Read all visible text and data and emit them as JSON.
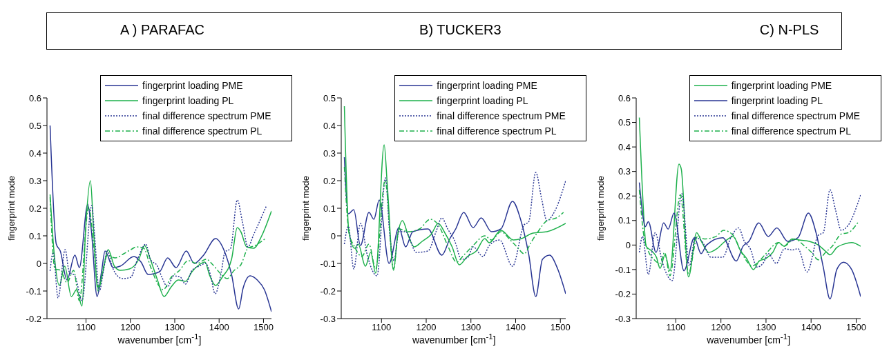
{
  "chart_data": [
    {
      "type": "line",
      "title": "A ) PARAFAC",
      "xlabel": "wavenumber [cm$^{-1}$]",
      "ylabel": "fingerprint mode",
      "xlim": [
        1012,
        1518
      ],
      "ylim": [
        -0.2,
        0.6
      ],
      "xticks": [
        1100,
        1200,
        1300,
        1400,
        1500
      ],
      "yticks": [
        -0.2,
        -0.1,
        0,
        0.1,
        0.2,
        0.3,
        0.4,
        0.5,
        0.6
      ],
      "legend": "top right",
      "series": [
        {
          "name": "fingerprint loading PME",
          "color": "#283593",
          "line_style": "solid",
          "x": [
            1019,
            1033,
            1042,
            1057,
            1075,
            1085,
            1104,
            1112,
            1125,
            1135,
            1143,
            1161,
            1177,
            1208,
            1224,
            1240,
            1266,
            1284,
            1303,
            1326,
            1344,
            1365,
            1392,
            1413,
            1428,
            1444,
            1454,
            1470,
            1486,
            1502,
            1518
          ],
          "values": [
            0.5,
            0.07,
            0.045,
            -0.06,
            0.03,
            -0.015,
            0.215,
            0.12,
            -0.12,
            -0.03,
            0.045,
            -0.015,
            -0.01,
            0.025,
            0.005,
            -0.04,
            -0.03,
            0.02,
            -0.015,
            0.045,
            0,
            0.03,
            0.09,
            0.04,
            -0.04,
            -0.165,
            -0.09,
            -0.045,
            -0.06,
            -0.095,
            -0.175
          ]
        },
        {
          "name": "fingerprint loading PL",
          "color": "#1db04b",
          "line_style": "solid",
          "x": [
            1019,
            1028,
            1040,
            1052,
            1067,
            1079,
            1091,
            1099,
            1110,
            1117,
            1127,
            1138,
            1150,
            1164,
            1177,
            1198,
            1219,
            1232,
            1245,
            1261,
            1276,
            1292,
            1308,
            1324,
            1339,
            1355,
            1368,
            1379,
            1392,
            1407,
            1428,
            1441,
            1449,
            1462,
            1478,
            1496,
            1518
          ],
          "values": [
            0.25,
            0.04,
            -0.08,
            -0.01,
            -0.12,
            -0.095,
            -0.155,
            0.12,
            0.3,
            0.12,
            -0.1,
            -0.03,
            0.05,
            -0.01,
            -0.025,
            -0.02,
            0.015,
            0.065,
            0.015,
            -0.06,
            -0.12,
            -0.085,
            -0.06,
            -0.065,
            -0.03,
            -0.005,
            0.005,
            -0.045,
            -0.08,
            -0.05,
            0.015,
            0.13,
            0.115,
            0.06,
            0.055,
            0.1,
            0.19
          ]
        },
        {
          "name": "final difference spectrum PME",
          "color": "#283593",
          "line_style": "dotted",
          "x": [
            1019,
            1026,
            1037,
            1053,
            1062,
            1075,
            1091,
            1113,
            1119,
            1130,
            1140,
            1148,
            1161,
            1182,
            1201,
            1216,
            1235,
            1245,
            1261,
            1271,
            1284,
            1297,
            1313,
            1324,
            1339,
            1355,
            1370,
            1381,
            1391,
            1405,
            1413,
            1426,
            1441,
            1452,
            1465,
            1478,
            1507
          ],
          "values": [
            -0.027,
            0.04,
            -0.125,
            0.05,
            -0.03,
            -0.045,
            -0.135,
            0.21,
            0.11,
            -0.1,
            -0.02,
            0.045,
            -0.02,
            -0.055,
            -0.05,
            0.015,
            0.07,
            0.015,
            -0.01,
            -0.05,
            -0.085,
            -0.045,
            -0.05,
            -0.075,
            -0.025,
            -0.01,
            0,
            -0.045,
            -0.11,
            -0.03,
            0.04,
            0.055,
            0.23,
            0.155,
            0.06,
            0.105,
            0.21
          ]
        },
        {
          "name": "final difference spectrum PL",
          "color": "#1db04b",
          "line_style": "dashed",
          "x": [
            1019,
            1030,
            1043,
            1057,
            1072,
            1085,
            1106,
            1117,
            1127,
            1140,
            1148,
            1166,
            1185,
            1201,
            1214,
            1230,
            1245,
            1266,
            1274,
            1292,
            1311,
            1330,
            1350,
            1371,
            1386,
            1402,
            1418,
            1434,
            1449,
            1465,
            1481,
            1504
          ],
          "values": [
            0.24,
            -0.02,
            -0.025,
            -0.07,
            -0.025,
            -0.135,
            0.205,
            0.07,
            -0.085,
            -0.01,
            0.03,
            0.02,
            0.035,
            0.05,
            0.06,
            0.055,
            -0.01,
            -0.085,
            -0.095,
            -0.05,
            -0.025,
            0.01,
            0,
            0.015,
            -0.005,
            -0.035,
            -0.055,
            -0.025,
            -0.005,
            0.055,
            0.065,
            0.09
          ]
        }
      ]
    },
    {
      "type": "line",
      "title": "B) TUCKER3",
      "xlabel": "wavenumber [cm$^{-1}$]",
      "ylabel": "fingerprint mode",
      "xlim": [
        1010,
        1512
      ],
      "ylim": [
        -0.3,
        0.5
      ],
      "xticks": [
        1100,
        1200,
        1300,
        1400,
        1500
      ],
      "yticks": [
        -0.3,
        -0.2,
        -0.1,
        0,
        0.1,
        0.2,
        0.3,
        0.4,
        0.5
      ],
      "legend": "top right",
      "series": [
        {
          "name": "fingerprint loading PME",
          "color": "#283593",
          "line_style": "solid",
          "x": [
            1017,
            1026,
            1038,
            1053,
            1072,
            1083,
            1095,
            1117,
            1139,
            1154,
            1170,
            1204,
            1235,
            1253,
            1266,
            1284,
            1305,
            1323,
            1346,
            1367,
            1393,
            1411,
            1429,
            1445,
            1460,
            1476,
            1494,
            1512
          ],
          "values": [
            0.285,
            0.08,
            0.095,
            -0.035,
            0.085,
            0.06,
            0.13,
            -0.1,
            0.03,
            -0.04,
            0.015,
            0.025,
            -0.07,
            -0.01,
            0.025,
            0.085,
            0.03,
            0.065,
            0.015,
            0.025,
            0.125,
            0.06,
            -0.065,
            -0.22,
            -0.085,
            -0.07,
            -0.12,
            -0.21
          ]
        },
        {
          "name": "fingerprint loading PL",
          "color": "#1db04b",
          "line_style": "solid",
          "x": [
            1017,
            1027,
            1040,
            1048,
            1064,
            1076,
            1087,
            1106,
            1113,
            1127,
            1136,
            1147,
            1160,
            1173,
            1191,
            1211,
            1227,
            1242,
            1258,
            1274,
            1292,
            1312,
            1331,
            1341,
            1367,
            1395,
            1413,
            1439,
            1470,
            1512
          ],
          "values": [
            0.47,
            0.015,
            -0.045,
            -0.03,
            -0.11,
            -0.06,
            -0.135,
            0.33,
            0.185,
            -0.125,
            0,
            0.055,
            0,
            -0.04,
            -0.02,
            0.005,
            0.045,
            0.01,
            -0.04,
            -0.105,
            -0.075,
            -0.055,
            -0.01,
            -0.025,
            0.02,
            -0.015,
            -0.01,
            0.01,
            0.015,
            0.045
          ]
        },
        {
          "name": "final difference spectrum PME",
          "color": "#283593",
          "line_style": "dotted",
          "x": [
            1017,
            1026,
            1038,
            1053,
            1069,
            1090,
            1109,
            1118,
            1128,
            1139,
            1154,
            1178,
            1204,
            1222,
            1235,
            1248,
            1263,
            1279,
            1292,
            1305,
            1327,
            1341,
            1364,
            1393,
            1419,
            1429,
            1445,
            1458,
            1470,
            1486,
            1512
          ],
          "values": [
            -0.03,
            0.035,
            -0.12,
            0.045,
            -0.075,
            -0.145,
            0.21,
            0.015,
            -0.09,
            0.015,
            0.015,
            -0.06,
            -0.055,
            0.015,
            0.065,
            0.025,
            -0.015,
            -0.085,
            -0.08,
            -0.04,
            -0.075,
            -0.035,
            -0.015,
            -0.11,
            0.04,
            0.05,
            0.23,
            0.135,
            0.055,
            0.085,
            0.2
          ]
        },
        {
          "name": "final difference spectrum PL",
          "color": "#1db04b",
          "line_style": "dashed",
          "x": [
            1017,
            1027,
            1040,
            1056,
            1072,
            1087,
            1108,
            1127,
            1139,
            1160,
            1185,
            1209,
            1227,
            1248,
            1268,
            1284,
            1305,
            1331,
            1346,
            1367,
            1388,
            1403,
            1419,
            1434,
            1450,
            1470,
            1491,
            1507
          ],
          "values": [
            0.25,
            0.015,
            -0.04,
            -0.075,
            -0.03,
            -0.12,
            0.2,
            -0.12,
            0.025,
            0.015,
            0.025,
            0.06,
            0.04,
            -0.035,
            -0.095,
            -0.07,
            -0.035,
            0,
            -0.015,
            0.015,
            -0.015,
            -0.04,
            -0.065,
            -0.025,
            0.015,
            0.055,
            0.065,
            0.085
          ]
        }
      ]
    },
    {
      "type": "line",
      "title": "C) N-PLS",
      "xlabel": "wavenumber [cm$^{-1}$]",
      "ylabel": "fingerprint mode",
      "xlim": [
        1012,
        1510
      ],
      "ylim": [
        -0.3,
        0.6
      ],
      "xticks": [
        1100,
        1200,
        1300,
        1400,
        1500
      ],
      "yticks": [
        -0.3,
        -0.2,
        -0.1,
        0,
        0.1,
        0.2,
        0.3,
        0.4,
        0.5,
        0.6
      ],
      "legend": "top right",
      "series": [
        {
          "name": "fingerprint loading PME",
          "color": "#1db04b",
          "line_style": "solid",
          "x": [
            1019,
            1028,
            1034,
            1047,
            1057,
            1065,
            1076,
            1087,
            1107,
            1112,
            1128,
            1146,
            1158,
            1173,
            1191,
            1209,
            1227,
            1244,
            1257,
            1272,
            1285,
            1300,
            1315,
            1328,
            1340,
            1358,
            1376,
            1396,
            1416,
            1432,
            1442,
            1457,
            1475,
            1490,
            1510
          ],
          "values": [
            0.52,
            0.145,
            -0.005,
            -0.025,
            -0.05,
            -0.095,
            -0.04,
            -0.105,
            0.33,
            0.31,
            -0.13,
            0.05,
            0.01,
            -0.03,
            -0.015,
            0.015,
            0.035,
            -0.025,
            -0.055,
            -0.1,
            -0.065,
            -0.055,
            -0.03,
            0.01,
            -0.005,
            0.025,
            0.02,
            0.015,
            0,
            -0.025,
            -0.04,
            -0.01,
            0.005,
            0.01,
            -0.005
          ]
        },
        {
          "name": "fingerprint loading PL",
          "color": "#283593",
          "line_style": "solid",
          "x": [
            1019,
            1028,
            1032,
            1039,
            1056,
            1073,
            1083,
            1096,
            1118,
            1141,
            1156,
            1168,
            1204,
            1234,
            1249,
            1262,
            1284,
            1305,
            1324,
            1348,
            1371,
            1394,
            1411,
            1427,
            1442,
            1457,
            1472,
            1490,
            1510
          ],
          "values": [
            0.255,
            0.105,
            0.075,
            0.095,
            -0.03,
            0.09,
            0.065,
            0.13,
            -0.105,
            0.03,
            -0.035,
            0,
            0.03,
            -0.065,
            -0.005,
            0.015,
            0.09,
            0.035,
            0.07,
            0.015,
            0.03,
            0.13,
            0.05,
            -0.09,
            -0.22,
            -0.1,
            -0.07,
            -0.1,
            -0.21
          ]
        },
        {
          "name": "final difference spectrum PME",
          "color": "#283593",
          "line_style": "dotted",
          "x": [
            1019,
            1026,
            1039,
            1054,
            1070,
            1092,
            1113,
            1130,
            1143,
            1158,
            1178,
            1204,
            1222,
            1239,
            1252,
            1265,
            1280,
            1295,
            1305,
            1323,
            1341,
            1358,
            1371,
            1391,
            1416,
            1427,
            1442,
            1454,
            1467,
            1482,
            1510
          ],
          "values": [
            -0.03,
            0.035,
            -0.12,
            0.05,
            -0.07,
            -0.145,
            0.21,
            -0.085,
            0.03,
            0.015,
            -0.05,
            -0.05,
            0.03,
            0.07,
            0.015,
            -0.015,
            -0.09,
            -0.07,
            -0.035,
            -0.075,
            -0.015,
            -0.02,
            -0.015,
            -0.11,
            0.04,
            0.05,
            0.225,
            0.145,
            0.06,
            0.08,
            0.205
          ]
        },
        {
          "name": "final difference spectrum PL",
          "color": "#1db04b",
          "line_style": "dashed",
          "x": [
            1019,
            1028,
            1039,
            1052,
            1065,
            1075,
            1087,
            1110,
            1128,
            1148,
            1163,
            1189,
            1206,
            1227,
            1244,
            1270,
            1285,
            1300,
            1328,
            1340,
            1363,
            1386,
            1401,
            1416,
            1432,
            1447,
            1467,
            1482,
            1505
          ],
          "values": [
            0.225,
            0.05,
            -0.025,
            -0.06,
            -0.075,
            -0.03,
            -0.125,
            0.205,
            -0.115,
            0.035,
            0.025,
            0.035,
            0.06,
            0.04,
            -0.025,
            -0.085,
            -0.065,
            -0.035,
            0.01,
            -0.005,
            0.025,
            -0.005,
            -0.03,
            -0.06,
            -0.03,
            -0.005,
            0.045,
            0.05,
            0.095
          ]
        }
      ]
    }
  ]
}
